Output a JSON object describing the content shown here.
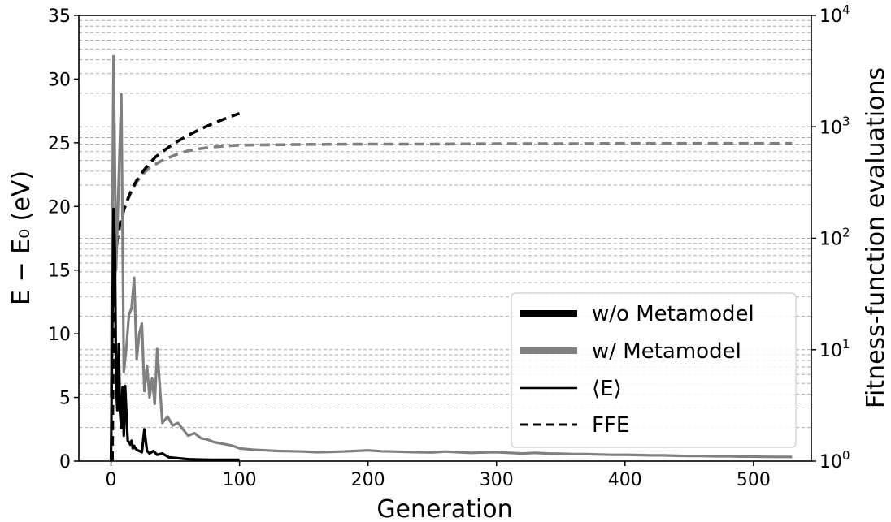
{
  "chart_data": {
    "type": "line",
    "xlabel": "Generation",
    "ylabel_left": "E − E₀ (eV)",
    "ylabel_right": "Fitness-function evaluations",
    "xlim": [
      -25,
      545
    ],
    "ylim_left": [
      0,
      35
    ],
    "ylim_right": [
      1,
      10000
    ],
    "right_axis_scale": "log",
    "x_ticks": [
      0,
      100,
      200,
      300,
      400,
      500
    ],
    "y_ticks_left": [
      0,
      5,
      10,
      15,
      20,
      25,
      30,
      35
    ],
    "y_ticks_right": [
      "10^0",
      "10^1",
      "10^2",
      "10^3",
      "10^4"
    ],
    "grid": "dashed horizontal gridlines at right-axis log ticks (major and minor)",
    "legend_position": "lower right",
    "legend": [
      {
        "label": "w/o Metamodel",
        "style": "thick-solid",
        "color": "#000000"
      },
      {
        "label": "w/ Metamodel",
        "style": "thick-solid",
        "color": "#808080"
      },
      {
        "label": "⟨E⟩",
        "style": "thin-solid",
        "color": "#000000"
      },
      {
        "label": "FFE",
        "style": "dashed",
        "color": "#000000"
      }
    ],
    "series": [
      {
        "name": "w/o Metamodel ⟨E⟩",
        "axis": "left",
        "style": "solid",
        "color": "#000000",
        "x": [
          0,
          1,
          2,
          3,
          4,
          5,
          6,
          7,
          8,
          9,
          10,
          11,
          12,
          13,
          14,
          15,
          16,
          17,
          18,
          19,
          20,
          22,
          24,
          26,
          28,
          30,
          33,
          36,
          40,
          45,
          50,
          55,
          60,
          70,
          80,
          90,
          100
        ],
        "y": [
          0,
          10.2,
          19.8,
          16.5,
          6.0,
          4.0,
          9.2,
          3.8,
          2.6,
          5.8,
          2.0,
          5.9,
          3.6,
          1.6,
          1.5,
          1.3,
          1.6,
          1.0,
          1.2,
          1.0,
          0.9,
          0.8,
          0.7,
          2.5,
          0.8,
          0.6,
          0.8,
          0.5,
          0.6,
          0.3,
          0.25,
          0.2,
          0.15,
          0.12,
          0.1,
          0.1,
          0.1
        ]
      },
      {
        "name": "w/ Metamodel ⟨E⟩",
        "axis": "left",
        "style": "solid",
        "color": "#808080",
        "x": [
          0,
          2,
          4,
          6,
          8,
          10,
          12,
          14,
          16,
          18,
          20,
          22,
          24,
          26,
          28,
          30,
          32,
          34,
          36,
          40,
          44,
          48,
          52,
          56,
          60,
          65,
          70,
          75,
          80,
          85,
          90,
          95,
          100,
          110,
          120,
          130,
          140,
          150,
          160,
          170,
          180,
          190,
          200,
          210,
          220,
          230,
          240,
          250,
          260,
          270,
          280,
          290,
          300,
          310,
          320,
          330,
          340,
          350,
          360,
          370,
          380,
          390,
          400,
          410,
          420,
          430,
          440,
          450,
          460,
          470,
          480,
          490,
          500,
          510,
          520,
          530
        ],
        "y": [
          5.0,
          31.8,
          15.0,
          22.0,
          28.8,
          7.0,
          9.0,
          11.5,
          12.0,
          14.4,
          8.0,
          10.0,
          10.8,
          5.5,
          7.5,
          5.0,
          6.5,
          4.5,
          8.8,
          3.0,
          3.5,
          2.8,
          3.0,
          2.5,
          2.0,
          2.2,
          1.8,
          1.7,
          1.5,
          1.4,
          1.3,
          1.2,
          1.0,
          0.9,
          0.85,
          0.8,
          0.78,
          0.75,
          0.7,
          0.72,
          0.75,
          0.8,
          0.85,
          0.78,
          0.75,
          0.72,
          0.7,
          0.68,
          0.75,
          0.7,
          0.65,
          0.68,
          0.7,
          0.65,
          0.6,
          0.65,
          0.6,
          0.58,
          0.55,
          0.55,
          0.52,
          0.5,
          0.5,
          0.48,
          0.45,
          0.45,
          0.42,
          0.4,
          0.4,
          0.38,
          0.38,
          0.36,
          0.35,
          0.34,
          0.33,
          0.33
        ]
      },
      {
        "name": "w/o Metamodel FFE",
        "axis": "right",
        "style": "dashed",
        "color": "#000000",
        "x": [
          1,
          2,
          3,
          4,
          5,
          6,
          8,
          10,
          12,
          15,
          18,
          20,
          25,
          30,
          35,
          40,
          50,
          60,
          70,
          80,
          90,
          100
        ],
        "y": [
          1,
          30,
          60,
          80,
          100,
          120,
          150,
          180,
          210,
          255,
          300,
          330,
          400,
          470,
          540,
          600,
          720,
          840,
          960,
          1080,
          1200,
          1320
        ]
      },
      {
        "name": "w/ Metamodel FFE",
        "axis": "right",
        "style": "dashed",
        "color": "#808080",
        "x": [
          1,
          2,
          5,
          10,
          15,
          20,
          25,
          30,
          40,
          50,
          60,
          70,
          80,
          90,
          100,
          120,
          150,
          200,
          250,
          300,
          350,
          400,
          450,
          500,
          530
        ],
        "y": [
          1,
          30,
          100,
          180,
          250,
          320,
          380,
          430,
          500,
          560,
          610,
          640,
          660,
          675,
          685,
          690,
          695,
          700,
          700,
          705,
          705,
          710,
          710,
          710,
          710
        ]
      }
    ]
  }
}
